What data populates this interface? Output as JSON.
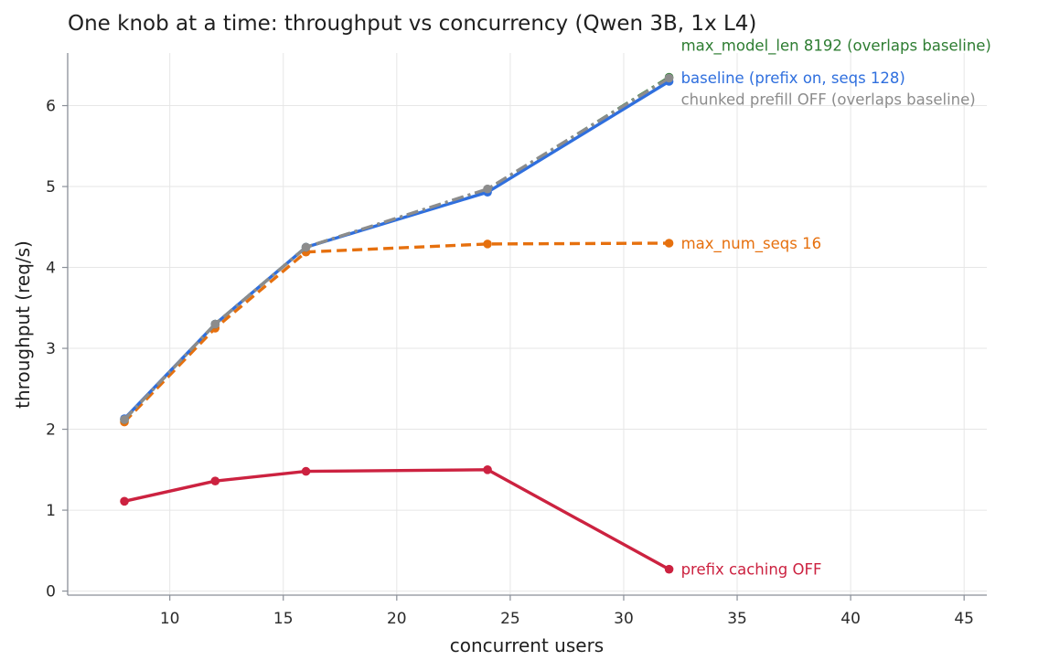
{
  "chart_data": {
    "type": "line",
    "title": "One knob at a time: throughput vs concurrency (Qwen 3B, 1x L4)",
    "xlabel": "concurrent users",
    "ylabel": "throughput (req/s)",
    "xlim": [
      5.5,
      46
    ],
    "ylim": [
      -0.05,
      6.65
    ],
    "xticks": [
      10,
      15,
      20,
      25,
      30,
      35,
      40,
      45
    ],
    "yticks": [
      0,
      1,
      2,
      3,
      4,
      5,
      6
    ],
    "grid": true,
    "legend": "direct labels at line ends",
    "series": [
      {
        "name": "max_model_len 8192 (overlaps baseline)",
        "color": "#2e7d32",
        "dash": "dashdot",
        "x": [
          8,
          12,
          16,
          24,
          32
        ],
        "y": [
          2.12,
          3.3,
          4.25,
          4.96,
          6.35
        ]
      },
      {
        "name": "baseline (prefix on, seqs 128)",
        "color": "#2f6fde",
        "dash": "solid",
        "x": [
          8,
          12,
          16,
          24,
          32
        ],
        "y": [
          2.13,
          3.3,
          4.25,
          4.93,
          6.3
        ]
      },
      {
        "name": "chunked prefill OFF (overlaps baseline)",
        "color": "#8c8c8c",
        "dash": "dashdot",
        "x": [
          8,
          12,
          16,
          24,
          32
        ],
        "y": [
          2.12,
          3.3,
          4.25,
          4.97,
          6.34
        ]
      },
      {
        "name": "max_num_seqs 16",
        "color": "#e6700e",
        "dash": "dashed",
        "x": [
          8,
          12,
          16,
          24,
          32
        ],
        "y": [
          2.09,
          3.25,
          4.19,
          4.29,
          4.3
        ]
      },
      {
        "name": "prefix caching OFF",
        "color": "#cc2240",
        "dash": "solid",
        "x": [
          8,
          12,
          16,
          24,
          32
        ],
        "y": [
          1.11,
          1.36,
          1.48,
          1.5,
          0.27
        ]
      }
    ]
  }
}
